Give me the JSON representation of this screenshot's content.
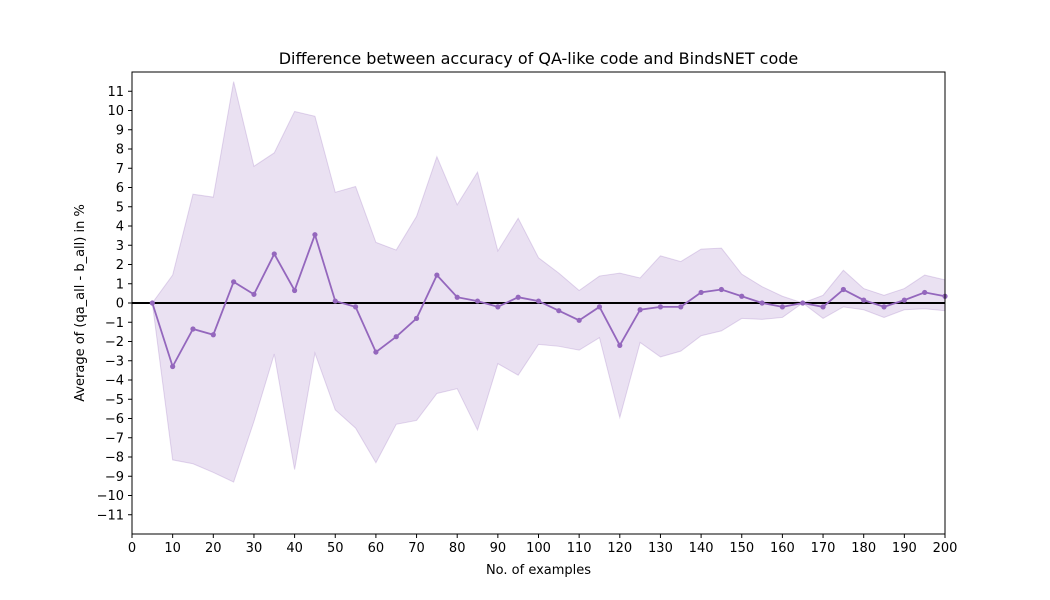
{
  "chart_data": {
    "type": "line",
    "title": "Difference between accuracy of QA-like code and BindsNET code",
    "xlabel": "No. of examples",
    "ylabel": "Average of (qa_all - b_all) in %",
    "xlim": [
      0,
      200
    ],
    "ylim": [
      -12,
      12
    ],
    "xticks": [
      0,
      10,
      20,
      30,
      40,
      50,
      60,
      70,
      80,
      90,
      100,
      110,
      120,
      130,
      140,
      150,
      160,
      170,
      180,
      190,
      200
    ],
    "yticks": [
      -11,
      -10,
      -9,
      -8,
      -7,
      -6,
      -5,
      -4,
      -3,
      -2,
      -1,
      0,
      1,
      2,
      3,
      4,
      5,
      6,
      7,
      8,
      9,
      10,
      11
    ],
    "grid": false,
    "colors": {
      "line": "#9467bd",
      "band": "#9467bd",
      "zero_line": "#000000"
    },
    "series": [
      {
        "x": [
          5,
          10,
          15,
          20,
          25,
          30,
          35,
          40,
          45,
          50,
          55,
          60,
          65,
          70,
          75,
          80,
          85,
          90,
          95,
          100,
          105,
          110,
          115,
          120,
          125,
          130,
          135,
          140,
          145,
          150,
          155,
          160,
          165,
          170,
          175,
          180,
          185,
          190,
          195,
          200
        ],
        "y": [
          0,
          -3.3,
          -1.35,
          -1.65,
          1.1,
          0.45,
          2.55,
          0.65,
          3.55,
          0.1,
          -0.2,
          -2.55,
          -1.75,
          -0.8,
          1.45,
          0.3,
          0.1,
          -0.2,
          0.3,
          0.1,
          -0.4,
          -0.9,
          -0.2,
          -2.2,
          -0.35,
          -0.2,
          -0.2,
          0.55,
          0.7,
          0.35,
          0,
          -0.2,
          0,
          -0.2,
          0.7,
          0.15,
          -0.2,
          0.15,
          0.55,
          0.35
        ],
        "upper": [
          0,
          1.45,
          5.65,
          5.5,
          11.5,
          7.1,
          7.8,
          9.95,
          9.7,
          5.75,
          6.05,
          3.15,
          2.75,
          4.5,
          7.6,
          5.1,
          6.8,
          2.7,
          4.4,
          2.35,
          1.55,
          0.65,
          1.4,
          1.55,
          1.3,
          2.45,
          2.15,
          2.8,
          2.85,
          1.5,
          0.85,
          0.35,
          0,
          0.4,
          1.7,
          0.75,
          0.4,
          0.75,
          1.45,
          1.2
        ],
        "lower": [
          0,
          -8.15,
          -8.35,
          -8.8,
          -9.3,
          -6.15,
          -2.65,
          -8.65,
          -2.6,
          -5.55,
          -6.5,
          -8.3,
          -6.3,
          -6.1,
          -4.7,
          -4.45,
          -6.6,
          -3.15,
          -3.75,
          -2.15,
          -2.25,
          -2.45,
          -1.8,
          -5.95,
          -2.05,
          -2.8,
          -2.5,
          -1.7,
          -1.45,
          -0.8,
          -0.85,
          -0.75,
          0,
          -0.8,
          -0.2,
          -0.35,
          -0.75,
          -0.35,
          -0.3,
          -0.4
        ]
      }
    ]
  }
}
